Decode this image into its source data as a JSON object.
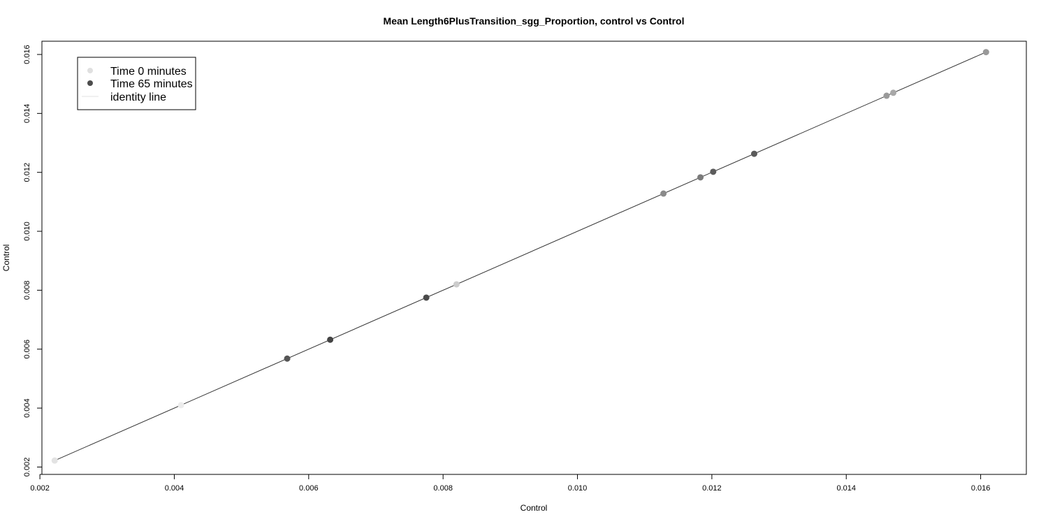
{
  "chart_data": {
    "type": "scatter",
    "title": "Mean Length6PlusTransition_sgg_Proportion, control vs Control",
    "xlabel": "Control",
    "ylabel": "Control",
    "xlim": [
      0.00203,
      0.01668
    ],
    "ylim": [
      0.00175,
      0.01645
    ],
    "x_ticks": [
      0.002,
      0.004,
      0.006,
      0.008,
      0.01,
      0.012,
      0.014,
      0.016
    ],
    "x_tick_labels": [
      "0.002",
      "0.004",
      "0.006",
      "0.008",
      "0.010",
      "0.012",
      "0.014",
      "0.016"
    ],
    "y_ticks": [
      0.002,
      0.004,
      0.006,
      0.008,
      0.01,
      0.012,
      0.014,
      0.016
    ],
    "y_tick_labels": [
      "0.002",
      "0.004",
      "0.006",
      "0.008",
      "0.010",
      "0.012",
      "0.014",
      "0.016"
    ],
    "grid": false,
    "legend_position": "top-left",
    "legend": [
      {
        "label": "Time 0 minutes",
        "kind": "point",
        "color": "#e0e0e0"
      },
      {
        "label": "Time 65 minutes",
        "kind": "point",
        "color": "#4d4d4d"
      },
      {
        "label": "identity line",
        "kind": "line",
        "color": "#e0e0e0"
      }
    ],
    "identity_line": {
      "from": 0.00222,
      "to": 0.01608,
      "color": "#333333"
    },
    "points": [
      {
        "x": 0.00222,
        "y": 0.00222,
        "color": "#e3e3e3"
      },
      {
        "x": 0.0041,
        "y": 0.0041,
        "color": "#ececec"
      },
      {
        "x": 0.00568,
        "y": 0.00568,
        "color": "#555555"
      },
      {
        "x": 0.00632,
        "y": 0.00632,
        "color": "#444444"
      },
      {
        "x": 0.00775,
        "y": 0.00775,
        "color": "#4a4a4a"
      },
      {
        "x": 0.0082,
        "y": 0.0082,
        "color": "#cccccc"
      },
      {
        "x": 0.01128,
        "y": 0.01128,
        "color": "#8a8a8a"
      },
      {
        "x": 0.01183,
        "y": 0.01183,
        "color": "#7a7a7a"
      },
      {
        "x": 0.01202,
        "y": 0.01202,
        "color": "#5c5c5c"
      },
      {
        "x": 0.01263,
        "y": 0.01263,
        "color": "#5a5a5a"
      },
      {
        "x": 0.0146,
        "y": 0.0146,
        "color": "#9a9a9a"
      },
      {
        "x": 0.0147,
        "y": 0.0147,
        "color": "#a8a8a8"
      },
      {
        "x": 0.01608,
        "y": 0.01608,
        "color": "#999999"
      }
    ]
  }
}
